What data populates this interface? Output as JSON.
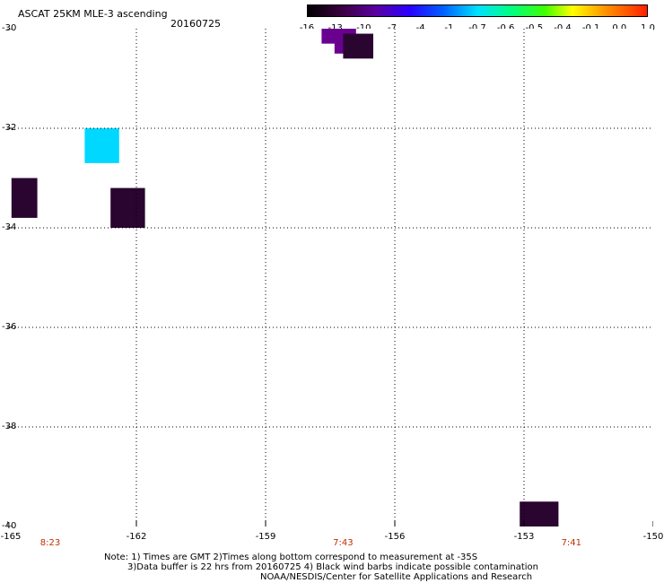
{
  "header": {
    "title": "ASCAT 25KM MLE-3 ascending",
    "date": "20160725"
  },
  "colorbar": {
    "labels": [
      "-16",
      "-13",
      "-10",
      "-7",
      "-4",
      "-1",
      "-0.7",
      "-0.6",
      "-0.5",
      "-0.4",
      "-0.1",
      "0.0",
      "1.0"
    ]
  },
  "axes": {
    "y_labels": [
      "-30",
      "-32",
      "-34",
      "-36",
      "-38",
      "-40"
    ],
    "x_labels": [
      "-165",
      "-162",
      "-159",
      "-156",
      "-153",
      "-150"
    ],
    "x_time_labels": [
      "8:23",
      "7:43",
      "7:41"
    ]
  },
  "map_data": {
    "lon_range": [
      -165,
      -150
    ],
    "lat_range": [
      -40,
      -30
    ],
    "patches": [
      {
        "lon": [
          -163.2,
          -162.4
        ],
        "lat": [
          -32.7,
          -32.0
        ],
        "color": "#00d8ff"
      },
      {
        "lon": [
          -164.9,
          -164.3
        ],
        "lat": [
          -33.8,
          -33.0
        ],
        "color": "#2a0530"
      },
      {
        "lon": [
          -162.6,
          -161.8
        ],
        "lat": [
          -34.0,
          -33.2
        ],
        "color": "#2a0530"
      },
      {
        "lon": [
          -157.7,
          -156.9
        ],
        "lat": [
          -30.3,
          -30.0
        ],
        "color": "#6a0090"
      },
      {
        "lon": [
          -157.4,
          -156.9
        ],
        "lat": [
          -30.5,
          -30.2
        ],
        "color": "#6a0090"
      },
      {
        "lon": [
          -157.2,
          -156.5
        ],
        "lat": [
          -30.6,
          -30.1
        ],
        "color": "#2a0530"
      },
      {
        "lon": [
          -153.1,
          -152.2
        ],
        "lat": [
          -40.0,
          -39.5
        ],
        "color": "#2a0530"
      }
    ]
  },
  "notes": {
    "line1": "Note: 1) Times are GMT 2)Times along bottom correspond to measurement at -35S",
    "line2": "3)Data buffer is 22 hrs from 20160725 4) Black wind barbs indicate possible contamination",
    "line3": "NOAA/NESDIS/Center for Satellite Applications and Research"
  }
}
